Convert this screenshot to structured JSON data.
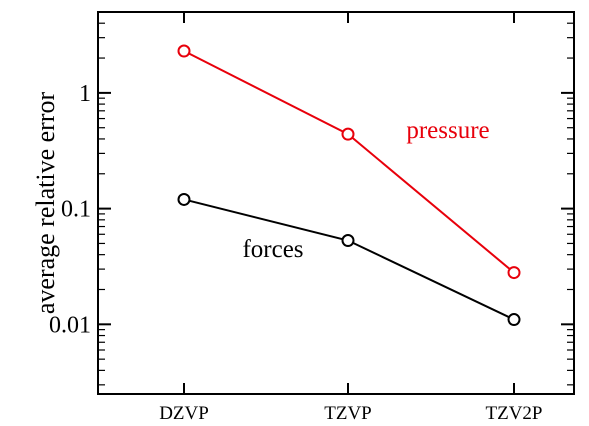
{
  "chart_data": {
    "type": "line",
    "title": "",
    "xlabel": "",
    "ylabel": "average relative error",
    "categories": [
      "DZVP",
      "TZVP",
      "TZV2P"
    ],
    "y_scale": "log",
    "ylim": [
      0.0025,
      5
    ],
    "y_ticks": [
      {
        "value": 0.01,
        "label": "0.01"
      },
      {
        "value": 0.1,
        "label": "0.1"
      },
      {
        "value": 1,
        "label": "1"
      }
    ],
    "grid": false,
    "legend": "none",
    "series": [
      {
        "name": "pressure",
        "values": [
          2.3,
          0.44,
          0.028
        ],
        "color": "#e8000b"
      },
      {
        "name": "forces",
        "values": [
          0.12,
          0.053,
          0.011
        ],
        "color": "#000000"
      }
    ]
  }
}
